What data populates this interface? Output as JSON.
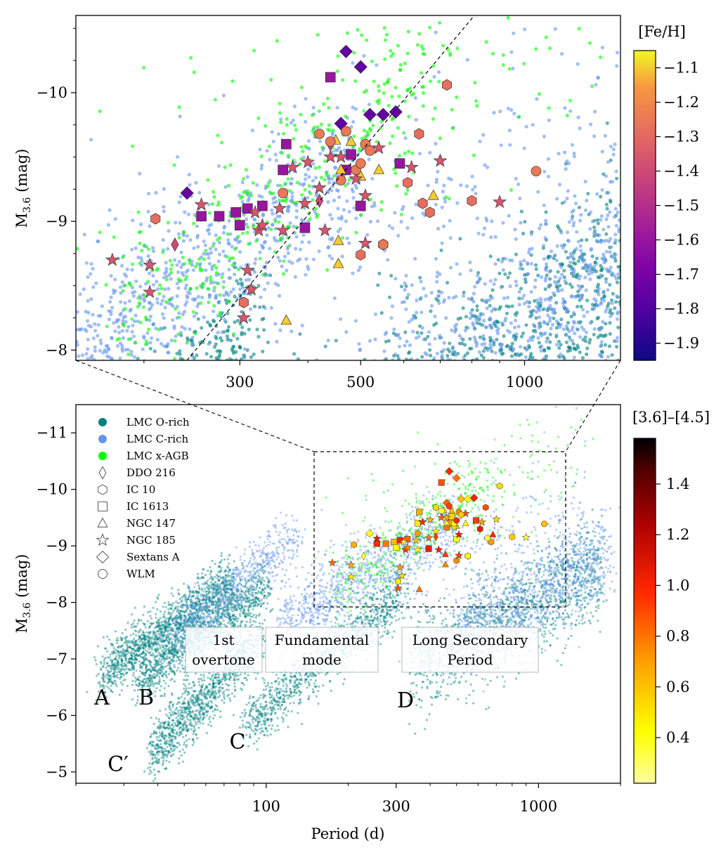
{
  "chart_data": [
    {
      "type": "scatter",
      "panel": "top (zoom of dashed box)",
      "xscale": "log",
      "xlim": [
        150,
        1500
      ],
      "ylim_inverted": [
        -7.92,
        -10.6
      ],
      "xticks": [
        300,
        500,
        1000
      ],
      "xtick_labels": [
        "300",
        "500",
        "1000"
      ],
      "yticks": [
        -10,
        -9,
        -8
      ],
      "ytick_labels": [
        "−10",
        "−9",
        "−8"
      ],
      "ylabel": "M3.6 (mag)",
      "colorbar": {
        "label": "[Fe/H]",
        "range": [
          -1.95,
          -1.05
        ],
        "ticks": [
          -1.1,
          -1.2,
          -1.3,
          -1.4,
          -1.5,
          -1.6,
          -1.7,
          -1.8,
          -1.9
        ],
        "tick_labels": [
          "−1.1",
          "−1.2",
          "−1.3",
          "−1.4",
          "−1.5",
          "−1.6",
          "−1.7",
          "−1.8",
          "−1.9"
        ],
        "colormap": "plasma"
      },
      "relation_line": {
        "style": "dashed",
        "from": [
          200,
          -8.0
        ],
        "to": [
          720,
          -10.6
        ]
      },
      "background_populations": [
        "LMC O-rich",
        "LMC C-rich",
        "LMC x-AGB"
      ],
      "galaxies": [
        {
          "name": "DDO 216",
          "marker": "thin-diamond",
          "feh": -1.4,
          "points": [
            [
              228,
              -8.82
            ],
            [
              420,
              -9.16
            ],
            [
              440,
              -9.6
            ]
          ]
        },
        {
          "name": "IC 10",
          "marker": "hexagon",
          "feh": -1.28,
          "points": [
            [
              210,
              -9.02
            ],
            [
              305,
              -8.37
            ],
            [
              610,
              -9.3
            ],
            [
              640,
              -9.68
            ],
            [
              670,
              -9.07
            ],
            [
              720,
              -10.06
            ],
            [
              650,
              -9.14
            ],
            [
              550,
              -8.82
            ],
            [
              500,
              -8.74
            ],
            [
              800,
              -9.16
            ]
          ]
        },
        {
          "name": "IC 1613",
          "marker": "square",
          "feh": -1.6,
          "points": [
            [
              255,
              -9.04
            ],
            [
              275,
              -9.04
            ],
            [
              295,
              -9.07
            ],
            [
              300,
              -8.97
            ],
            [
              310,
              -9.1
            ],
            [
              330,
              -9.12
            ],
            [
              365,
              -9.6
            ],
            [
              360,
              -9.4
            ],
            [
              395,
              -8.95
            ],
            [
              440,
              -10.12
            ],
            [
              470,
              -9.4
            ],
            [
              480,
              -9.52
            ],
            [
              500,
              -9.12
            ],
            [
              590,
              -9.45
            ]
          ]
        },
        {
          "name": "NGC 147",
          "marker": "triangle",
          "feh": -1.1,
          "points": [
            [
              450,
              -9.63
            ],
            [
              460,
              -9.4
            ],
            [
              455,
              -8.85
            ],
            [
              455,
              -8.67
            ],
            [
              500,
              -9.35
            ],
            [
              540,
              -9.4
            ],
            [
              680,
              -9.2
            ],
            [
              365,
              -8.23
            ],
            [
              480,
              -9.62
            ]
          ]
        },
        {
          "name": "NGC 185",
          "marker": "star",
          "feh": -1.36,
          "points": [
            [
              175,
              -8.7
            ],
            [
              205,
              -8.66
            ],
            [
              205,
              -8.45
            ],
            [
              255,
              -9.13
            ],
            [
              305,
              -8.25
            ],
            [
              310,
              -8.62
            ],
            [
              315,
              -8.47
            ],
            [
              320,
              -9.07
            ],
            [
              325,
              -8.93
            ],
            [
              330,
              -8.97
            ],
            [
              355,
              -9.1
            ],
            [
              360,
              -8.93
            ],
            [
              375,
              -9.42
            ],
            [
              395,
              -9.14
            ],
            [
              400,
              -9.46
            ],
            [
              420,
              -9.26
            ],
            [
              430,
              -8.93
            ],
            [
              440,
              -9.5
            ],
            [
              460,
              -9.5
            ],
            [
              490,
              -9.33
            ],
            [
              510,
              -9.2
            ],
            [
              540,
              -9.57
            ],
            [
              620,
              -9.42
            ],
            [
              700,
              -9.47
            ],
            [
              900,
              -9.15
            ],
            [
              510,
              -8.83
            ]
          ]
        },
        {
          "name": "Sextans A",
          "marker": "diamond",
          "feh": -1.75,
          "points": [
            [
              240,
              -9.22
            ],
            [
              470,
              -10.32
            ],
            [
              500,
              -10.2
            ],
            [
              520,
              -9.83
            ],
            [
              550,
              -9.83
            ],
            [
              580,
              -9.85
            ],
            [
              460,
              -9.76
            ]
          ]
        },
        {
          "name": "WLM",
          "marker": "circle",
          "feh": -1.25,
          "points": [
            [
              360,
              -9.22
            ],
            [
              420,
              -9.68
            ],
            [
              440,
              -9.62
            ],
            [
              470,
              -9.7
            ],
            [
              510,
              -9.6
            ],
            [
              520,
              -9.55
            ],
            [
              490,
              -9.4
            ],
            [
              500,
              -9.45
            ],
            [
              460,
              -9.32
            ],
            [
              1050,
              -9.39
            ],
            [
              550,
              -8.82
            ]
          ]
        }
      ]
    },
    {
      "type": "scatter",
      "panel": "bottom",
      "xscale": "log",
      "xlim": [
        20,
        2000
      ],
      "ylim_inverted": [
        -4.8,
        -11.5
      ],
      "xticks": [
        100,
        300,
        1000
      ],
      "xtick_labels": [
        "100",
        "300",
        "1000"
      ],
      "yticks": [
        -11,
        -10,
        -9,
        -8,
        -7,
        -6,
        -5
      ],
      "ytick_labels": [
        "−11",
        "−10",
        "−9",
        "−8",
        "−7",
        "−6",
        "−5"
      ],
      "xlabel": "Period (d)",
      "ylabel": "M3.6 (mag)",
      "zoom_box": {
        "x": [
          150,
          1250
        ],
        "y": [
          -7.92,
          -10.65
        ]
      },
      "colorbar": {
        "label": "[3.6]–[4.5]",
        "range": [
          0.22,
          1.58
        ],
        "ticks": [
          1.4,
          1.2,
          1.0,
          0.8,
          0.6,
          0.4
        ],
        "tick_labels": [
          "1.4",
          "1.2",
          "1.0",
          "0.8",
          "0.6",
          "0.4"
        ],
        "colormap": "hot_r"
      },
      "legend": [
        {
          "label": "LMC O-rich",
          "marker": "filled-circle",
          "color": "#008080"
        },
        {
          "label": "LMC C-rich",
          "marker": "filled-circle",
          "color": "#6495ED"
        },
        {
          "label": "LMC x-AGB",
          "marker": "filled-circle",
          "color": "#00FF00"
        },
        {
          "label": "DDO 216",
          "marker": "thin-diamond"
        },
        {
          "label": "IC 10",
          "marker": "hexagon"
        },
        {
          "label": "IC 1613",
          "marker": "square"
        },
        {
          "label": "NGC 147",
          "marker": "triangle"
        },
        {
          "label": "NGC 185",
          "marker": "star"
        },
        {
          "label": "Sextans A",
          "marker": "diamond"
        },
        {
          "label": "WLM",
          "marker": "circle"
        }
      ],
      "sequences": [
        {
          "label": "A",
          "period_range": [
            25,
            70
          ]
        },
        {
          "label": "B",
          "period_range": [
            35,
            95
          ]
        },
        {
          "label": "C′",
          "period_range": [
            38,
            85
          ]
        },
        {
          "label": "C",
          "period_range": [
            85,
            320
          ]
        },
        {
          "label": "D",
          "period_range": [
            350,
            1600
          ]
        }
      ],
      "annotations": [
        {
          "text": "1st overtone",
          "lines": [
            "1st",
            "overtone"
          ]
        },
        {
          "text": "Fundamental mode",
          "lines": [
            "Fundamental",
            "mode"
          ]
        },
        {
          "text": "Long Secondary Period",
          "lines": [
            "Long Secondary",
            "Period"
          ]
        }
      ]
    }
  ],
  "labels": {
    "top_ylabel_main": "M",
    "top_ylabel_sub": "3.6",
    "top_ylabel_unit": " (mag)",
    "bot_ylabel_main": "M",
    "bot_ylabel_sub": "3.6",
    "bot_ylabel_unit": " (mag)",
    "bot_xlabel": "Period (d)",
    "cb_top_label": "[Fe/H]",
    "cb_bot_label": "[3.6]–[4.5]",
    "seq_A": "A",
    "seq_B": "B",
    "seq_Cp": "C′",
    "seq_C": "C",
    "seq_D": "D",
    "ann1_l1": "1st",
    "ann1_l2": "overtone",
    "ann2_l1": "Fundamental",
    "ann2_l2": "mode",
    "ann3_l1": "Long Secondary",
    "ann3_l2": "Period"
  },
  "colors": {
    "o_rich": "#008080",
    "c_rich": "#6495ED",
    "x_agb": "#00FF00"
  }
}
